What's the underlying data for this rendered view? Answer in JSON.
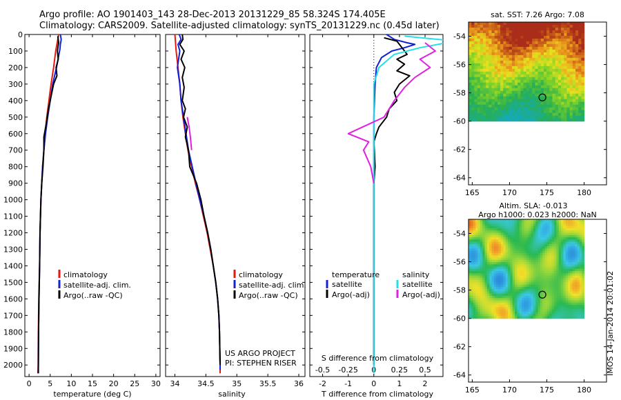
{
  "header": {
    "line1": "Argo profile: AO 1901403_143 28-Dec-2013 20131229_85 58.324S 174.405E",
    "line2": "Climatology: CARS2009. Satellite-adjusted climatology: synTS_20131229.nc (0.45d later)"
  },
  "colors": {
    "climatology": "#e8160c",
    "satellite": "#1020d8",
    "argo": "#000000",
    "satellite_s": "#22e0e8",
    "argo_s": "#e020e0"
  },
  "footer": {
    "project_line1": "US ARGO PROJECT",
    "project_line2": "PI: STEPHEN RISER",
    "stamp": "IMOS 14-Jan-2014 20:01:02"
  },
  "chart_data": [
    {
      "type": "line",
      "xlabel": "temperature (deg C)",
      "xlim": [
        -1,
        31
      ],
      "ylim": [
        2070,
        0
      ],
      "xticks": [
        0,
        5,
        10,
        15,
        20,
        25,
        30
      ],
      "yticks": [
        0,
        100,
        200,
        300,
        400,
        500,
        600,
        700,
        800,
        900,
        1000,
        1100,
        1200,
        1300,
        1400,
        1500,
        1600,
        1700,
        1800,
        1900,
        2000
      ],
      "legend": [
        "climatology",
        "satellite-adj. clim.",
        "Argo(..raw -QC)"
      ],
      "legend_position": "lower-center",
      "series": [
        {
          "name": "climatology",
          "color": "#e8160c",
          "points": [
            [
              7.0,
              0
            ],
            [
              6.8,
              30
            ],
            [
              6.3,
              100
            ],
            [
              5.8,
              200
            ],
            [
              5.2,
              300
            ],
            [
              4.7,
              400
            ],
            [
              4.2,
              500
            ],
            [
              3.8,
              600
            ],
            [
              3.5,
              700
            ],
            [
              3.2,
              800
            ],
            [
              3.0,
              900
            ],
            [
              2.8,
              1000
            ],
            [
              2.6,
              1200
            ],
            [
              2.5,
              1400
            ],
            [
              2.3,
              1600
            ],
            [
              2.2,
              1800
            ],
            [
              2.15,
              2000
            ],
            [
              2.1,
              2050
            ]
          ]
        },
        {
          "name": "satellite-adj. clim.",
          "color": "#1020d8",
          "points": [
            [
              7.4,
              0
            ],
            [
              7.6,
              30
            ],
            [
              7.4,
              60
            ],
            [
              7.3,
              90
            ],
            [
              6.5,
              200
            ],
            [
              5.6,
              300
            ],
            [
              5.0,
              400
            ],
            [
              4.4,
              500
            ],
            [
              3.9,
              600
            ],
            [
              3.5,
              700
            ],
            [
              3.2,
              800
            ],
            [
              3.0,
              900
            ],
            [
              2.8,
              1000
            ],
            [
              2.6,
              1200
            ],
            [
              2.5,
              1400
            ],
            [
              2.35,
              1600
            ],
            [
              2.25,
              1800
            ],
            [
              2.2,
              2000
            ],
            [
              2.15,
              2050
            ]
          ]
        },
        {
          "name": "Argo(..raw -QC)",
          "color": "#000000",
          "points": [
            [
              6.8,
              10
            ],
            [
              7.0,
              50
            ],
            [
              6.7,
              100
            ],
            [
              6.9,
              150
            ],
            [
              6.4,
              200
            ],
            [
              6.6,
              250
            ],
            [
              5.8,
              300
            ],
            [
              5.4,
              350
            ],
            [
              5.0,
              400
            ],
            [
              4.6,
              450
            ],
            [
              4.3,
              500
            ],
            [
              4.0,
              550
            ],
            [
              3.5,
              620
            ],
            [
              3.5,
              700
            ],
            [
              3.3,
              800
            ],
            [
              3.0,
              900
            ],
            [
              2.8,
              1000
            ],
            [
              2.6,
              1200
            ],
            [
              2.5,
              1400
            ],
            [
              2.35,
              1600
            ],
            [
              2.25,
              1800
            ],
            [
              2.2,
              2000
            ],
            [
              2.2,
              2050
            ]
          ]
        }
      ]
    },
    {
      "type": "line",
      "xlabel": "salinity",
      "xlim": [
        33.85,
        36.1
      ],
      "ylim": [
        2070,
        0
      ],
      "xticks": [
        34,
        34.5,
        35,
        35.5,
        36
      ],
      "legend": [
        "climatology",
        "satellite-adj. clim.",
        "Argo(..raw -QC)"
      ],
      "legend_position": "lower-right",
      "series": [
        {
          "name": "climatology",
          "color": "#e8160c",
          "points": [
            [
              34.0,
              0
            ],
            [
              34.02,
              100
            ],
            [
              34.05,
              200
            ],
            [
              34.08,
              300
            ],
            [
              34.1,
              400
            ],
            [
              34.13,
              500
            ],
            [
              34.17,
              600
            ],
            [
              34.21,
              700
            ],
            [
              34.27,
              800
            ],
            [
              34.33,
              900
            ],
            [
              34.4,
              1000
            ],
            [
              34.46,
              1100
            ],
            [
              34.52,
              1200
            ],
            [
              34.57,
              1300
            ],
            [
              34.62,
              1400
            ],
            [
              34.66,
              1500
            ],
            [
              34.69,
              1600
            ],
            [
              34.71,
              1700
            ],
            [
              34.72,
              1800
            ],
            [
              34.73,
              2000
            ],
            [
              34.73,
              2050
            ]
          ]
        },
        {
          "name": "satellite-adj. clim.",
          "color": "#1020d8",
          "points": [
            [
              34.07,
              0
            ],
            [
              34.1,
              30
            ],
            [
              34.05,
              60
            ],
            [
              34.08,
              100
            ],
            [
              34.04,
              200
            ],
            [
              34.08,
              300
            ],
            [
              34.1,
              400
            ],
            [
              34.14,
              500
            ],
            [
              34.18,
              600
            ],
            [
              34.22,
              700
            ],
            [
              34.28,
              800
            ],
            [
              34.34,
              900
            ],
            [
              34.4,
              1000
            ],
            [
              34.47,
              1100
            ],
            [
              34.53,
              1200
            ],
            [
              34.58,
              1300
            ],
            [
              34.62,
              1400
            ],
            [
              34.66,
              1500
            ],
            [
              34.69,
              1600
            ],
            [
              34.71,
              1700
            ],
            [
              34.72,
              1800
            ],
            [
              34.73,
              2000
            ],
            [
              34.73,
              2030
            ]
          ]
        },
        {
          "name": "Argo(..raw -QC)",
          "color": "#000000",
          "points": [
            [
              34.12,
              0
            ],
            [
              34.13,
              30
            ],
            [
              34.08,
              60
            ],
            [
              34.15,
              100
            ],
            [
              34.1,
              150
            ],
            [
              34.16,
              200
            ],
            [
              34.12,
              260
            ],
            [
              34.15,
              320
            ],
            [
              34.12,
              400
            ],
            [
              34.17,
              450
            ],
            [
              34.14,
              500
            ],
            [
              34.2,
              560
            ],
            [
              34.17,
              620
            ],
            [
              34.22,
              700
            ],
            [
              34.24,
              800
            ],
            [
              34.35,
              900
            ],
            [
              34.42,
              1000
            ],
            [
              34.47,
              1100
            ],
            [
              34.53,
              1200
            ],
            [
              34.58,
              1300
            ],
            [
              34.62,
              1400
            ],
            [
              34.66,
              1500
            ],
            [
              34.69,
              1600
            ],
            [
              34.71,
              1700
            ],
            [
              34.72,
              1800
            ],
            [
              34.73,
              2000
            ]
          ]
        },
        {
          "name": "Argo S",
          "color": "#e020e0",
          "points": [
            [
              34.2,
              500
            ],
            [
              34.23,
              560
            ],
            [
              34.25,
              620
            ],
            [
              34.27,
              700
            ]
          ]
        }
      ]
    },
    {
      "type": "line",
      "xlabel": "T difference from climatology",
      "xlabel2": "S difference from climatology",
      "xlim": [
        -2.5,
        2.7
      ],
      "ylim": [
        2070,
        0
      ],
      "xticks": [
        -2,
        -1,
        0,
        1,
        2
      ],
      "xticks2": [
        -0.5,
        -0.25,
        0,
        0.25,
        0.5
      ],
      "legend_headers": [
        "temperature",
        "salinity"
      ],
      "legend": [
        "satellite",
        "Argo(-adj)",
        "satellite",
        "Argo(-adj)"
      ],
      "legend_position": "lower-center",
      "series": [
        {
          "name": "T satellite",
          "color": "#1020d8",
          "points": [
            [
              0.5,
              0
            ],
            [
              0.8,
              30
            ],
            [
              1.3,
              50
            ],
            [
              1.6,
              60
            ],
            [
              1.2,
              80
            ],
            [
              0.7,
              100
            ],
            [
              0.3,
              140
            ],
            [
              0.1,
              200
            ],
            [
              0.05,
              300
            ],
            [
              0.0,
              500
            ],
            [
              0.0,
              800
            ],
            [
              0.0,
              1200
            ],
            [
              0.0,
              2000
            ]
          ]
        },
        {
          "name": "T Argo(-adj)",
          "color": "#000000",
          "points": [
            [
              0.4,
              20
            ],
            [
              0.9,
              40
            ],
            [
              1.1,
              80
            ],
            [
              1.3,
              120
            ],
            [
              0.9,
              150
            ],
            [
              1.2,
              180
            ],
            [
              0.9,
              220
            ],
            [
              1.4,
              250
            ],
            [
              1.0,
              300
            ],
            [
              0.8,
              350
            ],
            [
              0.9,
              400
            ],
            [
              0.6,
              450
            ],
            [
              0.5,
              500
            ],
            [
              0.2,
              560
            ],
            [
              0.1,
              600
            ],
            [
              0.0,
              650
            ],
            [
              0.02,
              700
            ],
            [
              0.05,
              800
            ],
            [
              0.0,
              900
            ],
            [
              0.0,
              1000
            ],
            [
              0.0,
              1200
            ],
            [
              0.0,
              1500
            ],
            [
              0.0,
              2000
            ]
          ]
        },
        {
          "name": "S satellite",
          "color": "#22e0e8",
          "points": [
            [
              0.3,
              10
            ],
            [
              0.8,
              40
            ],
            [
              0.45,
              80
            ],
            [
              0.2,
              120
            ],
            [
              0.05,
              200
            ],
            [
              0.0,
              300
            ],
            [
              0.0,
              600
            ],
            [
              0.0,
              1000
            ],
            [
              0.0,
              1500
            ],
            [
              0.0,
              2050
            ]
          ]
        },
        {
          "name": "S Argo(-adj)",
          "color": "#e020e0",
          "points": [
            [
              0.5,
              50
            ],
            [
              0.6,
              100
            ],
            [
              0.45,
              150
            ],
            [
              0.55,
              200
            ],
            [
              0.4,
              260
            ],
            [
              0.3,
              320
            ],
            [
              0.2,
              400
            ],
            [
              0.1,
              500
            ],
            [
              -0.25,
              600
            ],
            [
              -0.05,
              650
            ],
            [
              -0.1,
              700
            ],
            [
              -0.03,
              800
            ],
            [
              0.0,
              900
            ]
          ]
        }
      ]
    },
    {
      "type": "heatmap",
      "title": "sat. SST: 7.26 Argo: 7.08",
      "xlim": [
        164.5,
        183
      ],
      "ylim": [
        -64.5,
        -53
      ],
      "xticks": [
        165,
        170,
        175,
        180
      ],
      "yticks": [
        -54,
        -56,
        -58,
        -60,
        -62,
        -64
      ],
      "data_extent": {
        "lon": [
          164.5,
          180
        ],
        "lat": [
          -60,
          -53
        ]
      },
      "argo_position": [
        174.405,
        -58.324
      ]
    },
    {
      "type": "heatmap",
      "title": "Altim. SLA: -0.013",
      "subtitle": "Argo h1000: 0.023 h2000: NaN",
      "xlim": [
        164.5,
        183
      ],
      "ylim": [
        -64.5,
        -53
      ],
      "xticks": [
        165,
        170,
        175,
        180
      ],
      "yticks": [
        -54,
        -56,
        -58,
        -60,
        -62,
        -64
      ],
      "data_extent": {
        "lon": [
          164.5,
          180
        ],
        "lat": [
          -60,
          -53
        ]
      },
      "argo_position": [
        174.405,
        -58.324
      ]
    }
  ]
}
